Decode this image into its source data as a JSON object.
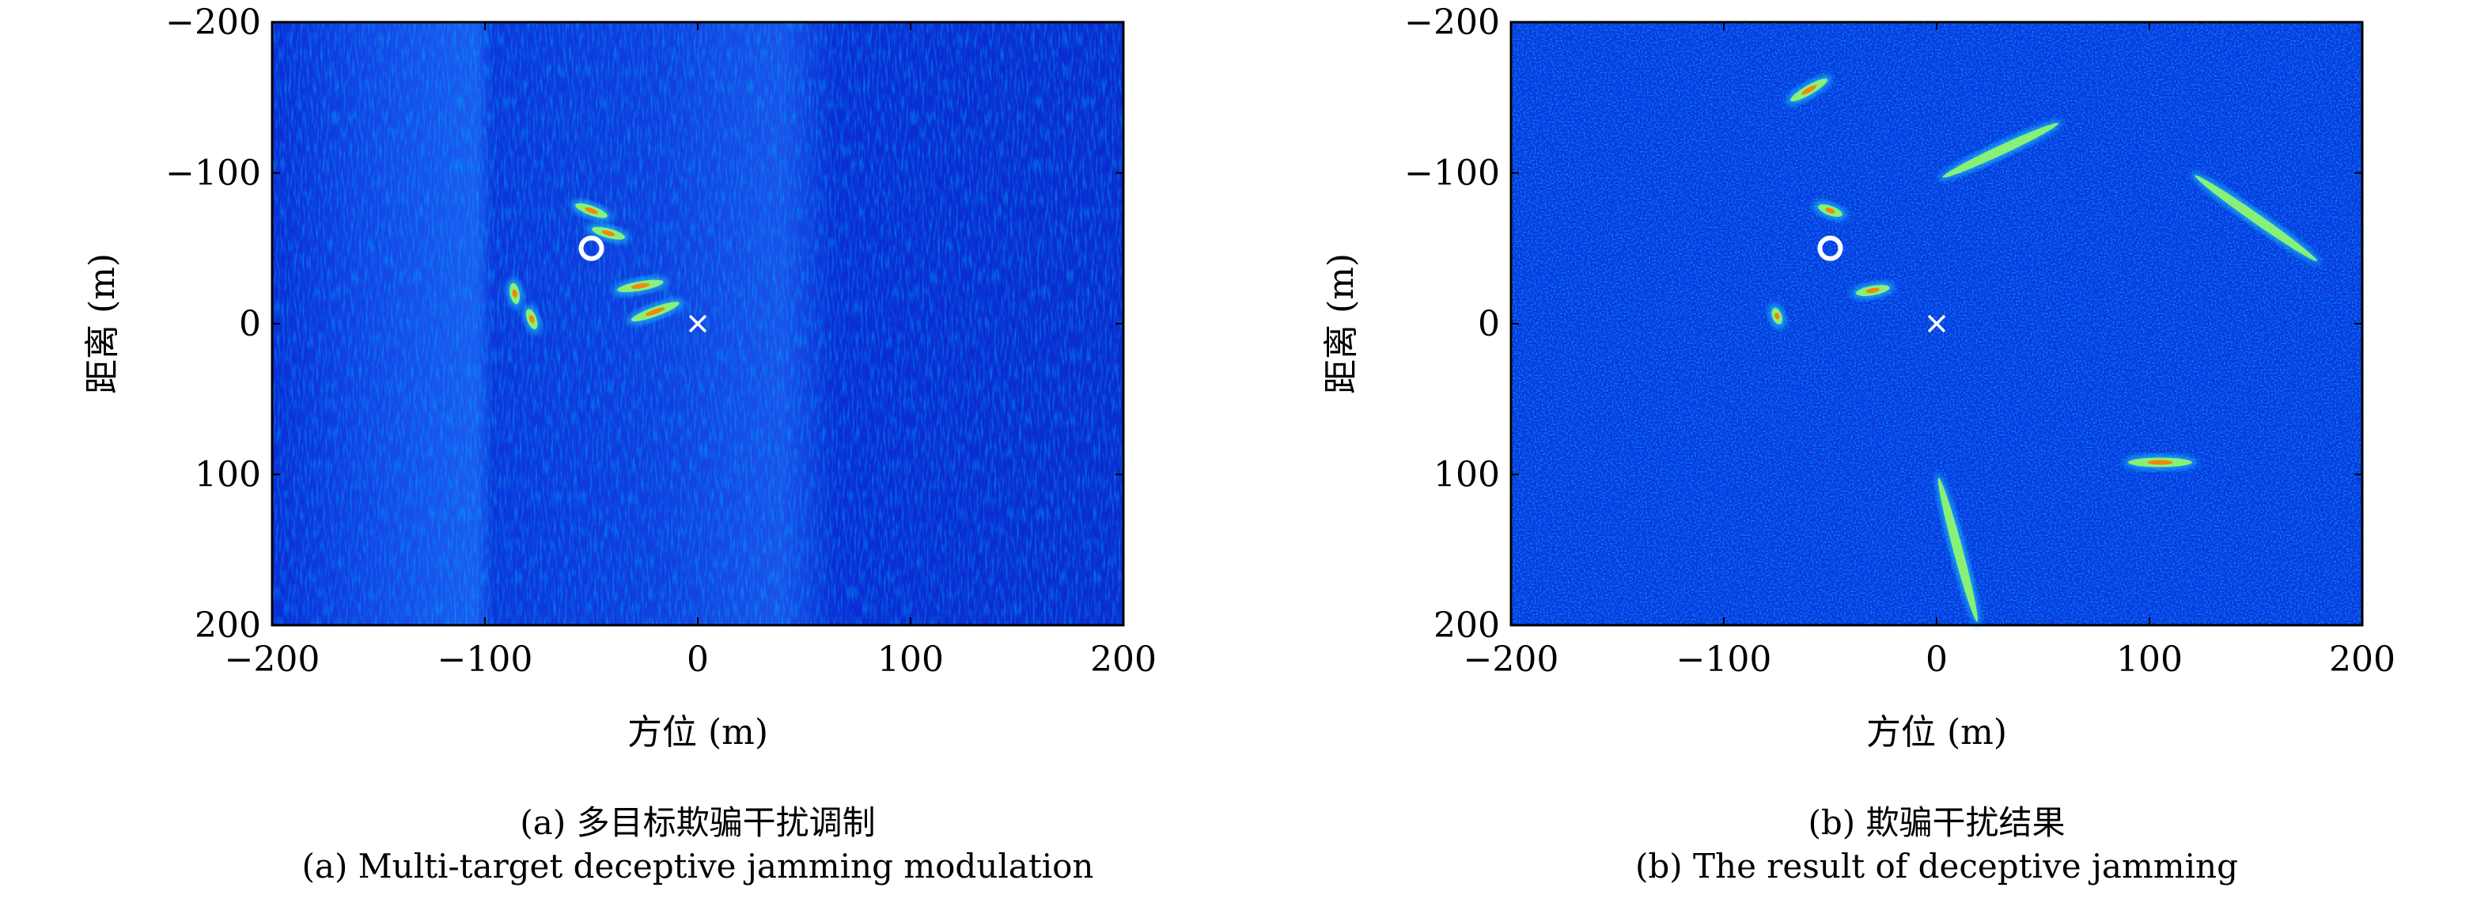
{
  "chart_data": [
    {
      "type": "heatmap",
      "panel": "a",
      "xlabel": "方位 (m)",
      "ylabel": "距离 (m)",
      "xlim": [
        -200,
        200
      ],
      "ylim": [
        -200,
        200
      ],
      "y_reversed": true,
      "xticks": [
        -200,
        -100,
        0,
        100,
        200
      ],
      "yticks": [
        -200,
        -100,
        0,
        100,
        200
      ],
      "xtick_labels": [
        "−200",
        "−100",
        "0",
        "100",
        "200"
      ],
      "ytick_labels": [
        "−200",
        "−100",
        "0",
        "100",
        "200"
      ],
      "colormap": "jet",
      "background_color": "#0a2ed6",
      "bright_regions": [
        {
          "x": -50,
          "y": -75,
          "len": 16,
          "angle": 20
        },
        {
          "x": -42,
          "y": -60,
          "len": 16,
          "angle": 15
        },
        {
          "x": -27,
          "y": -25,
          "len": 22,
          "angle": -10
        },
        {
          "x": -20,
          "y": -8,
          "len": 24,
          "angle": -20
        },
        {
          "x": -86,
          "y": -20,
          "len": 10,
          "angle": 80
        },
        {
          "x": -78,
          "y": -3,
          "len": 10,
          "angle": 70
        }
      ],
      "markers": [
        {
          "symbol": "circle",
          "x": -50,
          "y": -50,
          "color": "#ffffff"
        },
        {
          "symbol": "x",
          "x": 0,
          "y": 0,
          "color": "#ffffff"
        }
      ],
      "caption_cn": "(a) 多目标欺骗干扰调制",
      "caption_en": "(a) Multi-target deceptive jamming modulation"
    },
    {
      "type": "heatmap",
      "panel": "b",
      "xlabel": "方位 (m)",
      "ylabel": "距离 (m)",
      "xlim": [
        -200,
        200
      ],
      "ylim": [
        -200,
        200
      ],
      "y_reversed": true,
      "xticks": [
        -200,
        -100,
        0,
        100,
        200
      ],
      "yticks": [
        -200,
        -100,
        0,
        100,
        200
      ],
      "xtick_labels": [
        "−200",
        "−100",
        "0",
        "100",
        "200"
      ],
      "ytick_labels": [
        "−200",
        "−100",
        "0",
        "100",
        "200"
      ],
      "colormap": "jet",
      "background_color": "#0a35e0",
      "bright_regions": [
        {
          "x": -50,
          "y": -75,
          "len": 12,
          "angle": 20
        },
        {
          "x": -30,
          "y": -22,
          "len": 16,
          "angle": -10
        },
        {
          "x": -75,
          "y": -5,
          "len": 8,
          "angle": 70
        },
        {
          "x": 105,
          "y": 92,
          "len": 30,
          "angle": 0
        },
        {
          "x": -60,
          "y": -155,
          "len": 20,
          "angle": -30
        },
        {
          "x": 30,
          "y": -115,
          "len": 60,
          "angle": -25
        },
        {
          "x": 150,
          "y": -70,
          "len": 70,
          "angle": 35
        },
        {
          "x": 10,
          "y": 150,
          "len": 70,
          "angle": 75
        }
      ],
      "markers": [
        {
          "symbol": "circle",
          "x": -50,
          "y": -50,
          "color": "#ffffff"
        },
        {
          "symbol": "x",
          "x": 0,
          "y": 0,
          "color": "#ffffff"
        }
      ],
      "caption_cn": "(b) 欺骗干扰结果",
      "caption_en": "(b) The result of deceptive jamming"
    }
  ]
}
